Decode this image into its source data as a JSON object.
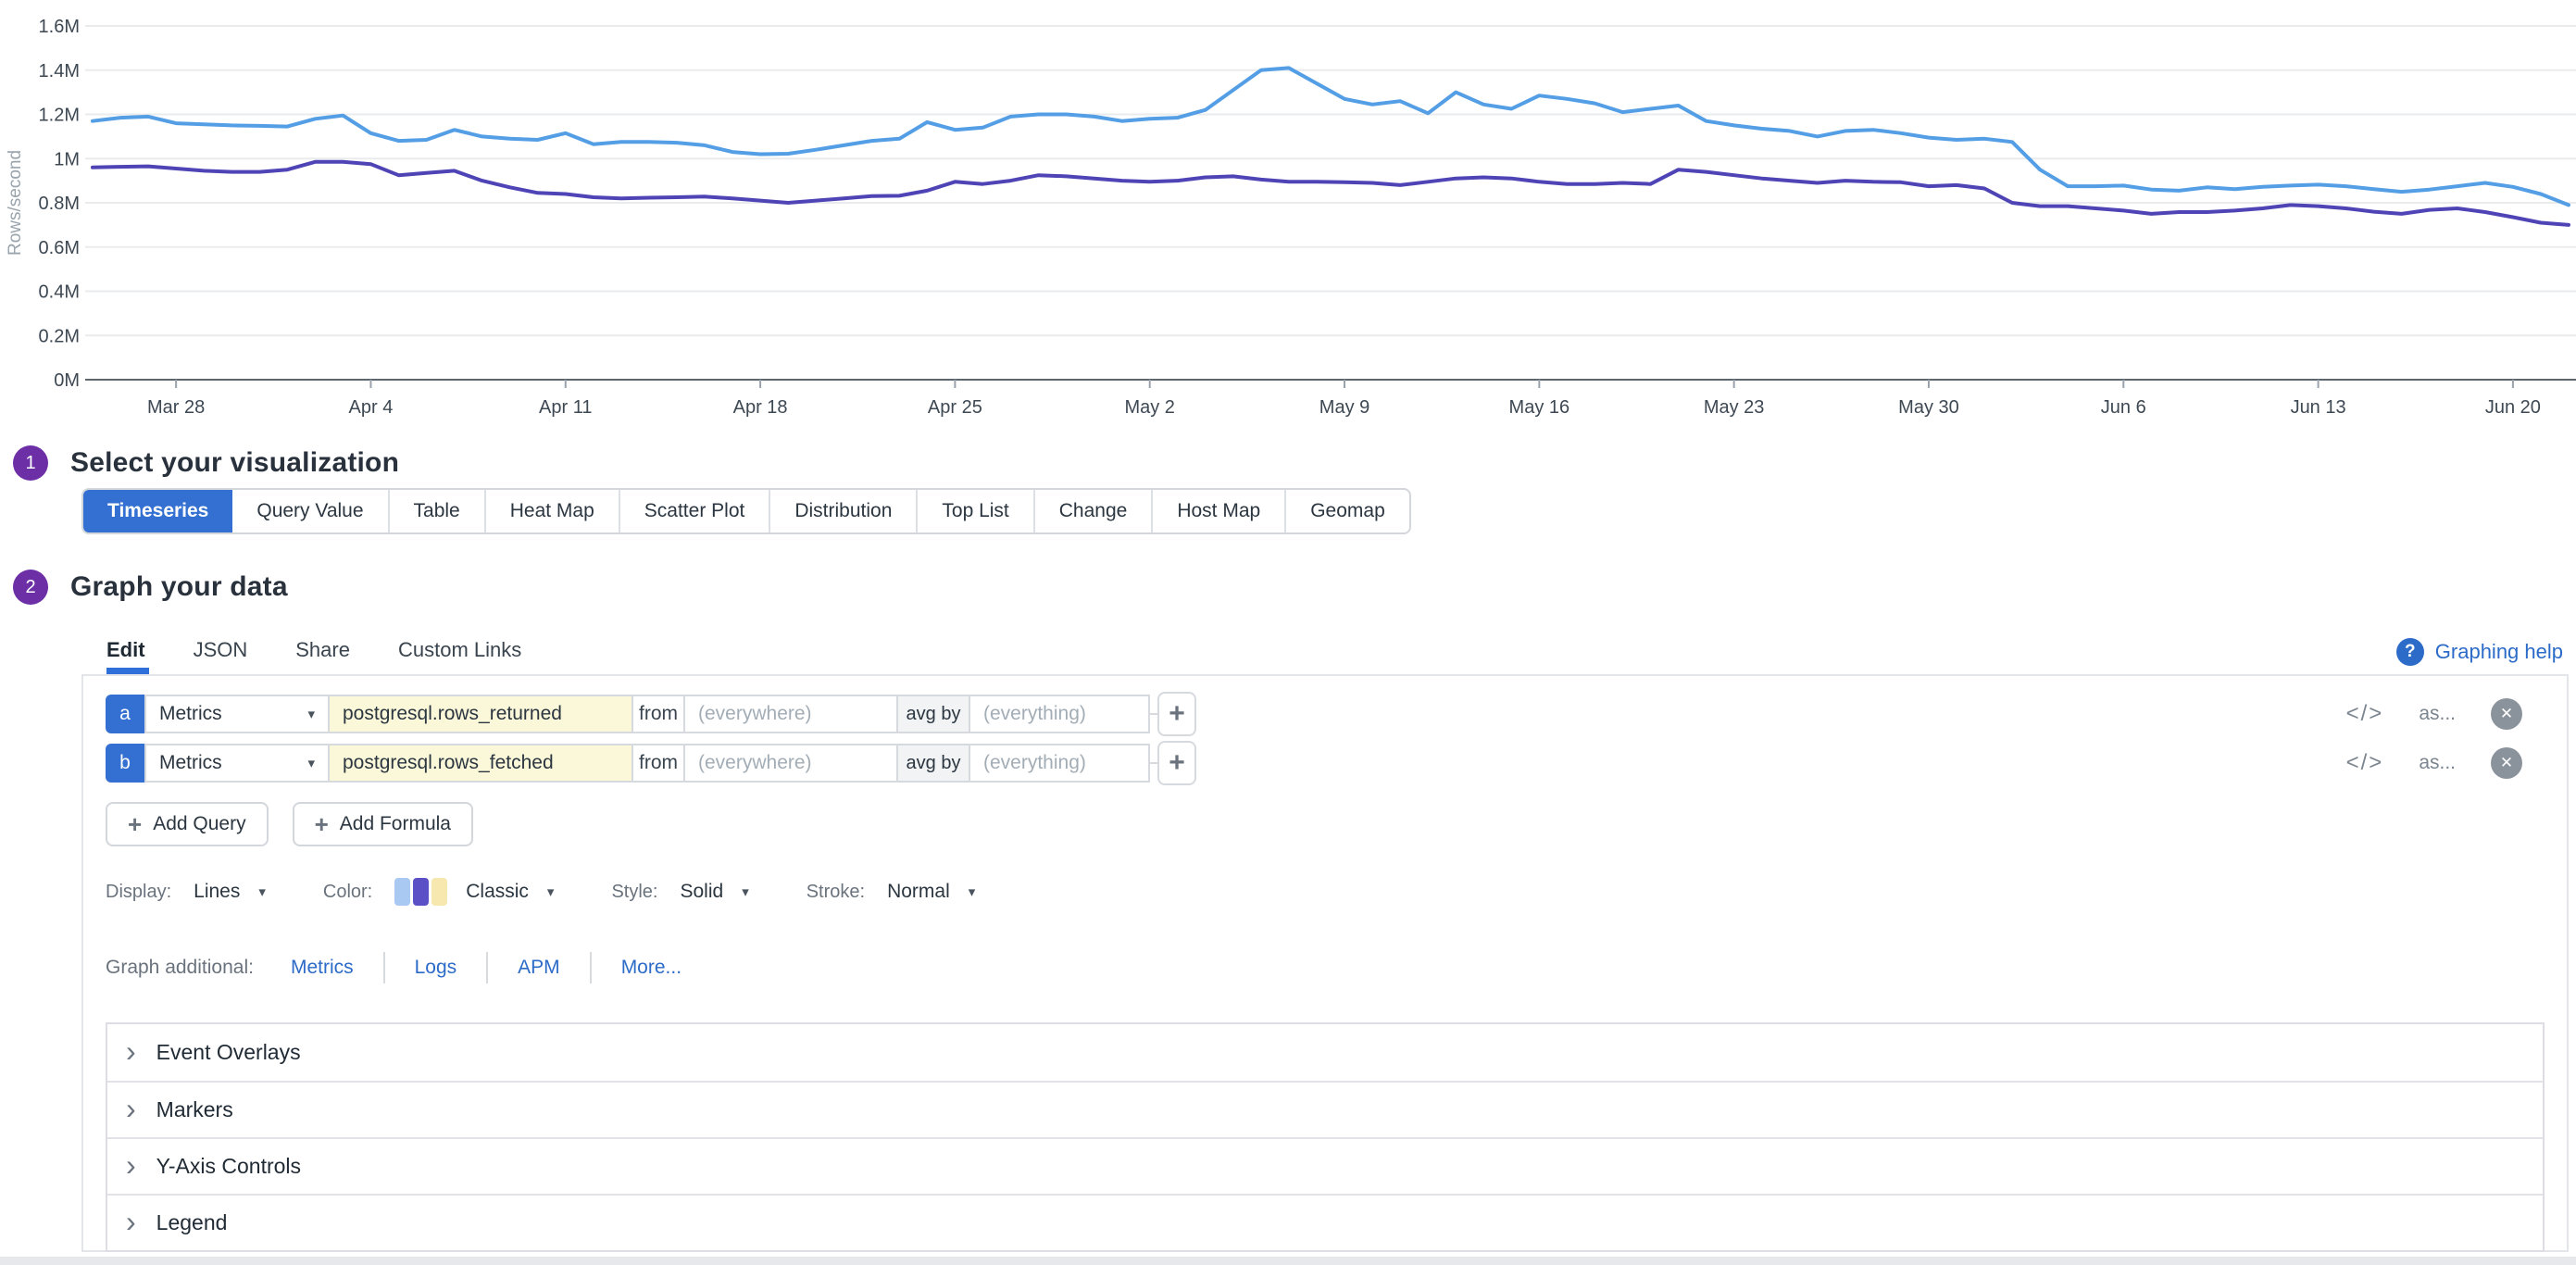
{
  "icons": {
    "code": "</>",
    "close": "✕",
    "chevron_down": "▾",
    "plus": "+",
    "collapse": "›",
    "help": "?"
  },
  "chart_data": {
    "type": "line",
    "title": "",
    "xlabel": "",
    "ylabel": "Rows/second",
    "ylim": [
      0,
      1.6
    ],
    "ytick_step": 0.2,
    "y_unit": "M",
    "grid": "horizontal",
    "legend": "none",
    "x_tick_labels": [
      "Mar 28",
      "Apr 4",
      "Apr 11",
      "Apr 18",
      "Apr 25",
      "May 2",
      "May 9",
      "May 16",
      "May 23",
      "May 30",
      "Jun 6",
      "Jun 13",
      "Jun 20"
    ],
    "x_tick_indices": [
      3,
      10,
      17,
      24,
      31,
      38,
      45,
      52,
      59,
      66,
      73,
      80,
      87
    ],
    "dates": [
      "Mar 25",
      "Mar 26",
      "Mar 27",
      "Mar 28",
      "Mar 29",
      "Mar 30",
      "Mar 31",
      "Apr 1",
      "Apr 2",
      "Apr 3",
      "Apr 4",
      "Apr 5",
      "Apr 6",
      "Apr 7",
      "Apr 8",
      "Apr 9",
      "Apr 10",
      "Apr 11",
      "Apr 12",
      "Apr 13",
      "Apr 14",
      "Apr 15",
      "Apr 16",
      "Apr 17",
      "Apr 18",
      "Apr 19",
      "Apr 20",
      "Apr 21",
      "Apr 22",
      "Apr 23",
      "Apr 24",
      "Apr 25",
      "Apr 26",
      "Apr 27",
      "Apr 28",
      "Apr 29",
      "Apr 30",
      "May 1",
      "May 2",
      "May 3",
      "May 4",
      "May 5",
      "May 6",
      "May 7",
      "May 8",
      "May 9",
      "May 10",
      "May 11",
      "May 12",
      "May 13",
      "May 14",
      "May 15",
      "May 16",
      "May 17",
      "May 18",
      "May 19",
      "May 20",
      "May 21",
      "May 22",
      "May 23",
      "May 24",
      "May 25",
      "May 26",
      "May 27",
      "May 28",
      "May 29",
      "May 30",
      "May 31",
      "Jun 1",
      "Jun 2",
      "Jun 3",
      "Jun 4",
      "Jun 5",
      "Jun 6",
      "Jun 7",
      "Jun 8",
      "Jun 9",
      "Jun 10",
      "Jun 11",
      "Jun 12",
      "Jun 13",
      "Jun 14",
      "Jun 15",
      "Jun 16",
      "Jun 17",
      "Jun 18",
      "Jun 19",
      "Jun 20",
      "Jun 21",
      "Jun 22"
    ],
    "series": [
      {
        "name": "postgresql.rows_returned",
        "color": "#549ee5",
        "values": [
          1.17,
          1.185,
          1.19,
          1.16,
          1.155,
          1.15,
          1.148,
          1.145,
          1.18,
          1.195,
          1.115,
          1.08,
          1.085,
          1.13,
          1.1,
          1.09,
          1.085,
          1.115,
          1.065,
          1.075,
          1.075,
          1.072,
          1.06,
          1.03,
          1.02,
          1.022,
          1.04,
          1.06,
          1.08,
          1.09,
          1.165,
          1.13,
          1.14,
          1.19,
          1.2,
          1.2,
          1.19,
          1.17,
          1.18,
          1.185,
          1.22,
          1.31,
          1.4,
          1.41,
          1.34,
          1.27,
          1.245,
          1.26,
          1.205,
          1.3,
          1.245,
          1.225,
          1.285,
          1.27,
          1.25,
          1.21,
          1.225,
          1.24,
          1.17,
          1.15,
          1.135,
          1.125,
          1.1,
          1.125,
          1.13,
          1.115,
          1.095,
          1.085,
          1.09,
          1.075,
          0.95,
          0.875,
          0.875,
          0.878,
          0.86,
          0.855,
          0.87,
          0.862,
          0.872,
          0.878,
          0.882,
          0.875,
          0.862,
          0.85,
          0.86,
          0.875,
          0.89,
          0.872,
          0.84,
          0.79
        ]
      },
      {
        "name": "postgresql.rows_fetched",
        "color": "#4f44b5",
        "values": [
          0.96,
          0.963,
          0.965,
          0.955,
          0.945,
          0.94,
          0.94,
          0.95,
          0.985,
          0.985,
          0.975,
          0.925,
          0.935,
          0.945,
          0.9,
          0.87,
          0.845,
          0.84,
          0.825,
          0.82,
          0.823,
          0.825,
          0.828,
          0.82,
          0.81,
          0.8,
          0.81,
          0.82,
          0.83,
          0.832,
          0.855,
          0.895,
          0.885,
          0.9,
          0.925,
          0.92,
          0.91,
          0.9,
          0.895,
          0.9,
          0.915,
          0.92,
          0.905,
          0.895,
          0.895,
          0.893,
          0.89,
          0.88,
          0.895,
          0.91,
          0.915,
          0.91,
          0.895,
          0.885,
          0.885,
          0.89,
          0.885,
          0.95,
          0.94,
          0.925,
          0.91,
          0.9,
          0.89,
          0.9,
          0.895,
          0.893,
          0.875,
          0.88,
          0.865,
          0.8,
          0.785,
          0.785,
          0.775,
          0.765,
          0.75,
          0.758,
          0.758,
          0.765,
          0.775,
          0.79,
          0.785,
          0.775,
          0.76,
          0.75,
          0.768,
          0.775,
          0.758,
          0.735,
          0.71,
          0.7
        ]
      }
    ]
  },
  "step1": {
    "number": "1",
    "title": "Select your visualization"
  },
  "viz_tabs": {
    "items": [
      {
        "label": "Timeseries",
        "selected": true
      },
      {
        "label": "Query Value"
      },
      {
        "label": "Table"
      },
      {
        "label": "Heat Map"
      },
      {
        "label": "Scatter Plot"
      },
      {
        "label": "Distribution"
      },
      {
        "label": "Top List"
      },
      {
        "label": "Change"
      },
      {
        "label": "Host Map"
      },
      {
        "label": "Geomap"
      }
    ]
  },
  "step2": {
    "number": "2",
    "title": "Graph your data"
  },
  "editor_tabs": {
    "items": [
      {
        "label": "Edit",
        "active": true
      },
      {
        "label": "JSON"
      },
      {
        "label": "Share"
      },
      {
        "label": "Custom Links"
      }
    ],
    "help_label": "Graphing help"
  },
  "queries": [
    {
      "letter": "a",
      "source": "Metrics",
      "metric": "postgresql.rows_returned",
      "from_label": "from",
      "from_placeholder": "(everywhere)",
      "agg_label": "avg by",
      "agg_placeholder": "(everything)",
      "as_label": "as..."
    },
    {
      "letter": "b",
      "source": "Metrics",
      "metric": "postgresql.rows_fetched",
      "from_label": "from",
      "from_placeholder": "(everywhere)",
      "agg_label": "avg by",
      "agg_placeholder": "(everything)",
      "as_label": "as..."
    }
  ],
  "actions": {
    "add_query": "Add Query",
    "add_formula": "Add Formula"
  },
  "display_options": {
    "display_label": "Display:",
    "display_value": "Lines",
    "color_label": "Color:",
    "color_value": "Classic",
    "palette_colors": [
      "#a9c8f2",
      "#5c50c7",
      "#f7e8b0"
    ],
    "style_label": "Style:",
    "style_value": "Solid",
    "stroke_label": "Stroke:",
    "stroke_value": "Normal"
  },
  "graph_additional": {
    "label": "Graph additional:",
    "links": [
      "Metrics",
      "Logs",
      "APM",
      "More..."
    ]
  },
  "sections": [
    {
      "label": "Event Overlays"
    },
    {
      "label": "Markers"
    },
    {
      "label": "Y-Axis Controls"
    },
    {
      "label": "Legend"
    }
  ]
}
